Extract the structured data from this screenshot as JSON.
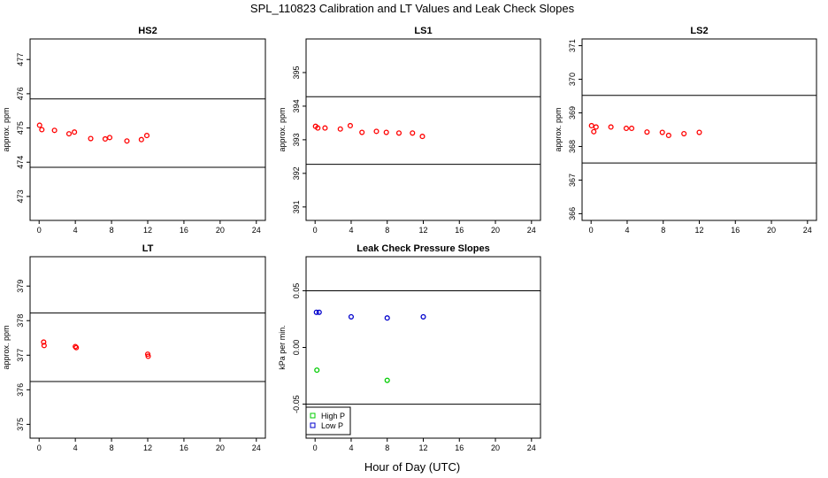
{
  "suptitle": "SPL_110823  Calibration and LT Values and Leak Check Slopes",
  "xlabel": "Hour of Day (UTC)",
  "chart_data": [
    {
      "type": "scatter",
      "title": "HS2",
      "ylabel": "approx. ppm",
      "xlim": [
        -1,
        25
      ],
      "ylim": [
        472.3,
        477.6
      ],
      "xticks": [
        0,
        4,
        8,
        12,
        16,
        20,
        24
      ],
      "yticks": [
        473,
        474,
        475,
        476,
        477
      ],
      "hlines": [
        475.85,
        473.85
      ],
      "series": [
        {
          "color": "#ff0000",
          "x": [
            0.05,
            0.3,
            1.7,
            3.3,
            3.9,
            5.7,
            7.3,
            7.8,
            9.7,
            11.3,
            11.9
          ],
          "y": [
            475.08,
            474.95,
            474.93,
            474.83,
            474.88,
            474.69,
            474.68,
            474.72,
            474.62,
            474.66,
            474.78
          ]
        }
      ]
    },
    {
      "type": "scatter",
      "title": "LS1",
      "ylabel": "approx. ppm",
      "xlim": [
        -1,
        25
      ],
      "ylim": [
        390.6,
        396.0
      ],
      "xticks": [
        0,
        4,
        8,
        12,
        16,
        20,
        24
      ],
      "yticks": [
        391,
        392,
        393,
        394,
        395
      ],
      "hlines": [
        394.28,
        392.27
      ],
      "series": [
        {
          "color": "#ff0000",
          "x": [
            0.05,
            0.3,
            1.1,
            2.8,
            3.9,
            5.2,
            6.8,
            7.9,
            9.3,
            10.8,
            11.9
          ],
          "y": [
            393.4,
            393.35,
            393.35,
            393.32,
            393.42,
            393.22,
            393.25,
            393.22,
            393.2,
            393.2,
            393.1
          ]
        }
      ]
    },
    {
      "type": "scatter",
      "title": "LS2",
      "ylabel": "approx. ppm",
      "xlim": [
        -1,
        25
      ],
      "ylim": [
        365.8,
        371.2
      ],
      "xticks": [
        0,
        4,
        8,
        12,
        16,
        20,
        24
      ],
      "yticks": [
        366,
        367,
        368,
        369,
        370,
        371
      ],
      "hlines": [
        369.52,
        367.51
      ],
      "series": [
        {
          "color": "#ff0000",
          "x": [
            0.05,
            0.3,
            0.55,
            2.2,
            3.9,
            4.5,
            6.2,
            7.9,
            8.6,
            10.3,
            12.0
          ],
          "y": [
            368.62,
            368.44,
            368.58,
            368.58,
            368.54,
            368.54,
            368.43,
            368.42,
            368.33,
            368.38,
            368.42
          ]
        }
      ]
    },
    {
      "type": "scatter",
      "title": "LT",
      "ylabel": "approx. ppm",
      "xlim": [
        -1,
        25
      ],
      "ylim": [
        374.6,
        379.85
      ],
      "xticks": [
        0,
        4,
        8,
        12,
        16,
        20,
        24
      ],
      "yticks": [
        375,
        376,
        377,
        378,
        379
      ],
      "hlines": [
        378.22,
        376.24
      ],
      "series": [
        {
          "color": "#ff0000",
          "x": [
            0.5,
            0.55,
            4.0,
            4.1,
            12.0,
            12.05
          ],
          "y": [
            377.38,
            377.28,
            377.25,
            377.22,
            377.03,
            376.97
          ]
        }
      ]
    },
    {
      "type": "scatter",
      "title": "Leak Check Pressure Slopes",
      "ylabel": "kPa per min.",
      "xlim": [
        -1,
        25
      ],
      "ylim": [
        -0.08,
        0.08
      ],
      "xticks": [
        0,
        4,
        8,
        12,
        16,
        20,
        24
      ],
      "yticks": [
        -0.05,
        0.0,
        0.05
      ],
      "yticklabels": [
        "-0.05",
        "0.00",
        "0.05"
      ],
      "hlines": [
        0.05,
        -0.05
      ],
      "legend": "bottom-left",
      "series": [
        {
          "name": "High P",
          "color": "#00cc00",
          "x": [
            0.2,
            8.0
          ],
          "y": [
            -0.02,
            -0.029
          ]
        },
        {
          "name": "Low P",
          "color": "#0000cc",
          "x": [
            0.15,
            0.45,
            4.0,
            8.0,
            12.0
          ],
          "y": [
            0.031,
            0.031,
            0.027,
            0.026,
            0.027
          ]
        }
      ]
    }
  ]
}
